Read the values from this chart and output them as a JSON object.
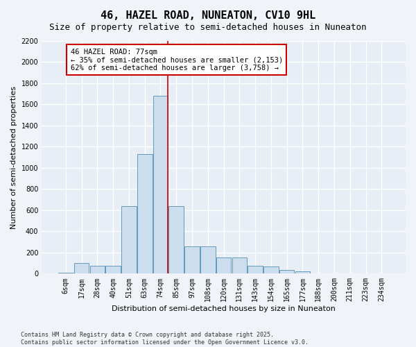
{
  "title": "46, HAZEL ROAD, NUNEATON, CV10 9HL",
  "subtitle": "Size of property relative to semi-detached houses in Nuneaton",
  "xlabel": "Distribution of semi-detached houses by size in Nuneaton",
  "ylabel": "Number of semi-detached properties",
  "categories": [
    "6sqm",
    "17sqm",
    "28sqm",
    "40sqm",
    "51sqm",
    "63sqm",
    "74sqm",
    "85sqm",
    "97sqm",
    "108sqm",
    "120sqm",
    "131sqm",
    "143sqm",
    "154sqm",
    "165sqm",
    "177sqm",
    "188sqm",
    "200sqm",
    "211sqm",
    "223sqm",
    "234sqm"
  ],
  "values": [
    10,
    100,
    75,
    75,
    640,
    1130,
    1680,
    640,
    260,
    260,
    150,
    150,
    75,
    70,
    35,
    20,
    5,
    0,
    5,
    0,
    0
  ],
  "bar_color": "#ccdded",
  "bar_edge_color": "#6699bb",
  "fig_bg_color": "#f0f4f8",
  "ax_bg_color": "#e8eef5",
  "grid_color": "#ffffff",
  "red_line_color": "#cc0000",
  "annotation_box_color": "#cc0000",
  "property_line_index": 6,
  "annotation_text_line1": "46 HAZEL ROAD: 77sqm",
  "annotation_text_line2": "← 35% of semi-detached houses are smaller (2,153)",
  "annotation_text_line3": "62% of semi-detached houses are larger (3,758) →",
  "footer_line1": "Contains HM Land Registry data © Crown copyright and database right 2025.",
  "footer_line2": "Contains public sector information licensed under the Open Government Licence v3.0.",
  "ylim": [
    0,
    2200
  ],
  "yticks": [
    0,
    200,
    400,
    600,
    800,
    1000,
    1200,
    1400,
    1600,
    1800,
    2000,
    2200
  ],
  "title_fontsize": 11,
  "subtitle_fontsize": 9,
  "axis_label_fontsize": 8,
  "tick_fontsize": 7,
  "annotation_fontsize": 7.5,
  "footer_fontsize": 6
}
